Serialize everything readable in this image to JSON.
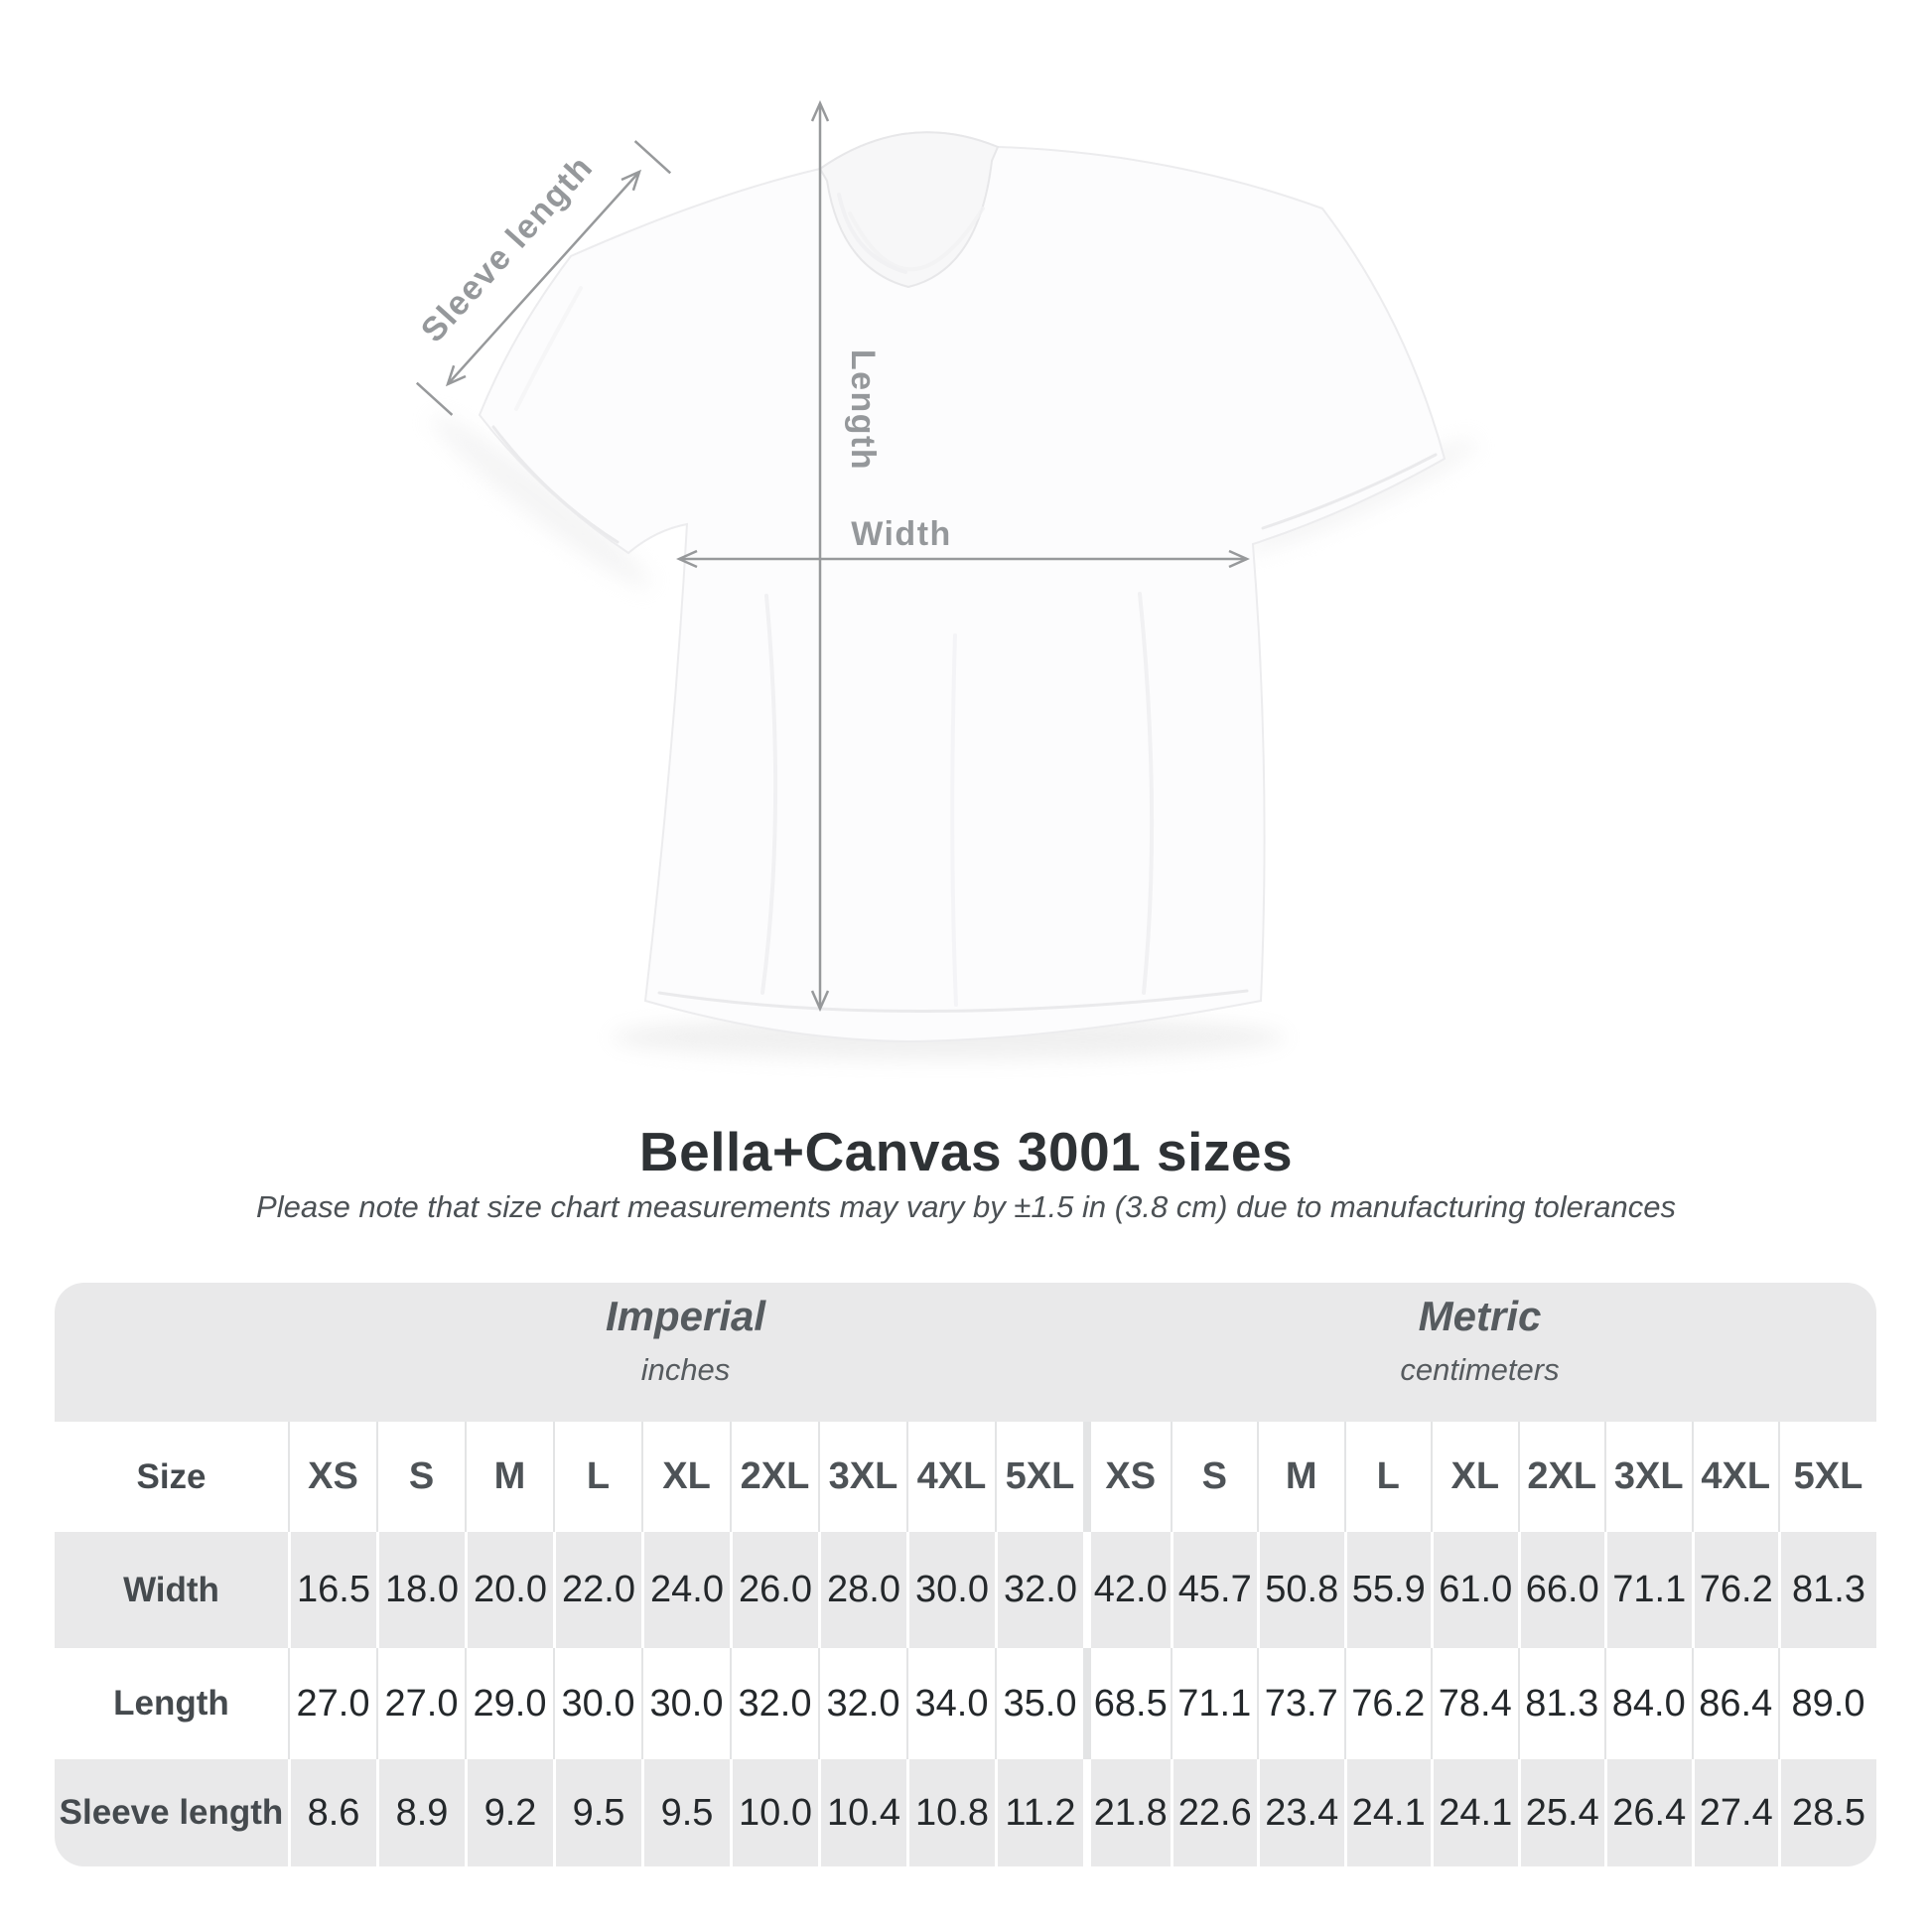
{
  "colors": {
    "annotation_gray": "#97999b",
    "table_band_gray": "#e9e9ea",
    "title_text": "#2e3235",
    "note_text": "#4c5155",
    "value_text": "#24282b"
  },
  "diagram": {
    "labels": {
      "sleeve_length": "Sleeve length",
      "length": "Length",
      "width": "Width"
    }
  },
  "heading": {
    "title": "Bella+Canvas 3001 sizes",
    "note": "Please note that size chart measurements may vary by ±1.5 in (3.8 cm) due to manufacturing tolerances"
  },
  "size_table": {
    "size_label": "Size",
    "unit_groups": [
      {
        "name": "Imperial",
        "unit": "inches"
      },
      {
        "name": "Metric",
        "unit": "centimeters"
      }
    ],
    "sizes": [
      "XS",
      "S",
      "M",
      "L",
      "XL",
      "2XL",
      "3XL",
      "4XL",
      "5XL"
    ],
    "rows": [
      {
        "label": "Width",
        "imperial": [
          "16.5",
          "18.0",
          "20.0",
          "22.0",
          "24.0",
          "26.0",
          "28.0",
          "30.0",
          "32.0"
        ],
        "metric": [
          "42.0",
          "45.7",
          "50.8",
          "55.9",
          "61.0",
          "66.0",
          "71.1",
          "76.2",
          "81.3"
        ]
      },
      {
        "label": "Length",
        "imperial": [
          "27.0",
          "27.0",
          "29.0",
          "30.0",
          "30.0",
          "32.0",
          "32.0",
          "34.0",
          "35.0"
        ],
        "metric": [
          "68.5",
          "71.1",
          "73.7",
          "76.2",
          "78.4",
          "81.3",
          "84.0",
          "86.4",
          "89.0"
        ]
      },
      {
        "label": "Sleeve length",
        "imperial": [
          "8.6",
          "8.9",
          "9.2",
          "9.5",
          "9.5",
          "10.0",
          "10.4",
          "10.8",
          "11.2"
        ],
        "metric": [
          "21.8",
          "22.6",
          "23.4",
          "24.1",
          "24.1",
          "25.4",
          "26.4",
          "27.4",
          "28.5"
        ]
      }
    ]
  },
  "chart_data": {
    "type": "table",
    "title": "Bella+Canvas 3001 sizes",
    "subtitle": "Please note that size chart measurements may vary by ±1.5 in (3.8 cm) due to manufacturing tolerances",
    "column_groups": [
      {
        "label": "Imperial",
        "unit": "inches"
      },
      {
        "label": "Metric",
        "unit": "centimeters"
      }
    ],
    "categories": [
      "XS",
      "S",
      "M",
      "L",
      "XL",
      "2XL",
      "3XL",
      "4XL",
      "5XL"
    ],
    "series": [
      {
        "name": "Width",
        "imperial_in": [
          16.5,
          18.0,
          20.0,
          22.0,
          24.0,
          26.0,
          28.0,
          30.0,
          32.0
        ],
        "metric_cm": [
          42.0,
          45.7,
          50.8,
          55.9,
          61.0,
          66.0,
          71.1,
          76.2,
          81.3
        ]
      },
      {
        "name": "Length",
        "imperial_in": [
          27.0,
          27.0,
          29.0,
          30.0,
          30.0,
          32.0,
          32.0,
          34.0,
          35.0
        ],
        "metric_cm": [
          68.5,
          71.1,
          73.7,
          76.2,
          78.4,
          81.3,
          84.0,
          86.4,
          89.0
        ]
      },
      {
        "name": "Sleeve length",
        "imperial_in": [
          8.6,
          8.9,
          9.2,
          9.5,
          9.5,
          10.0,
          10.4,
          10.8,
          11.2
        ],
        "metric_cm": [
          21.8,
          22.6,
          23.4,
          24.1,
          24.1,
          25.4,
          26.4,
          27.4,
          28.5
        ]
      }
    ],
    "layout": {
      "grid": false,
      "legend": "none"
    }
  }
}
